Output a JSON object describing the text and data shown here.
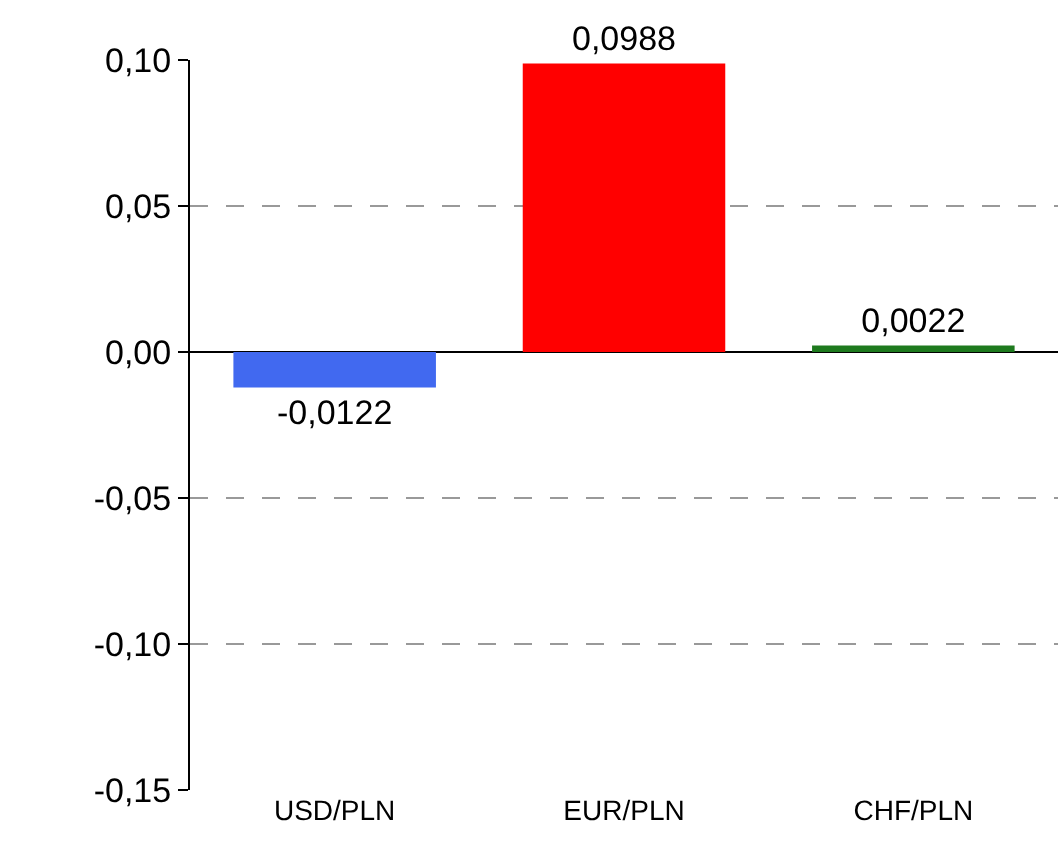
{
  "chart_data": {
    "type": "bar",
    "categories": [
      "USD/PLN",
      "EUR/PLN",
      "CHF/PLN"
    ],
    "values": [
      -0.0122,
      0.0988,
      0.0022
    ],
    "colors": [
      "#4169f0",
      "#ff0000",
      "#1e7a1e"
    ],
    "value_labels": [
      "-0,0122",
      "0,0988",
      "0,0022"
    ],
    "ylim": [
      -0.15,
      0.1
    ],
    "yticks": [
      {
        "value": -0.15,
        "label": "-0,15"
      },
      {
        "value": -0.1,
        "label": "-0,10"
      },
      {
        "value": -0.05,
        "label": "-0,05"
      },
      {
        "value": 0,
        "label": "0,00"
      },
      {
        "value": 0.05,
        "label": "0,05"
      },
      {
        "value": 0.1,
        "label": "0,10"
      }
    ],
    "grid": "y"
  }
}
